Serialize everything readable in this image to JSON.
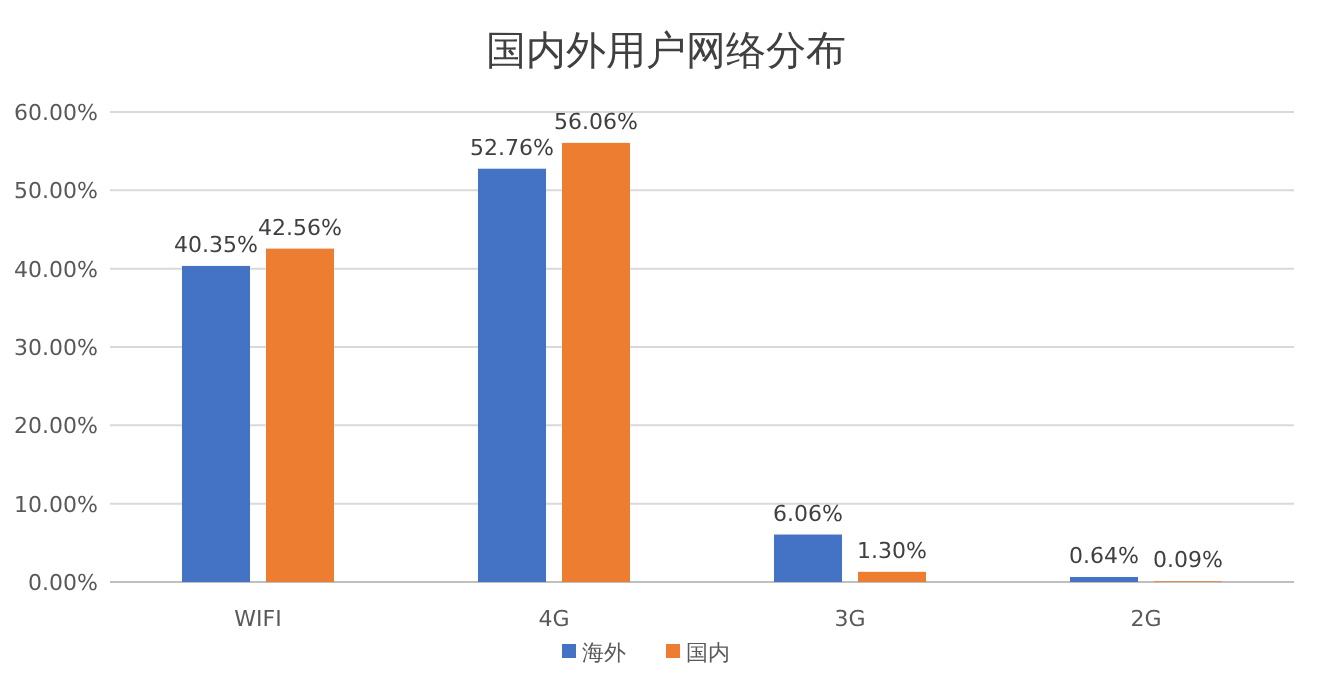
{
  "chart_data": {
    "type": "bar",
    "title": "国内外用户网络分布",
    "categories": [
      "WIFI",
      "4G",
      "3G",
      "2G"
    ],
    "series": [
      {
        "name": "海外",
        "color": "#4472c4",
        "values": [
          40.35,
          52.76,
          6.06,
          0.64
        ],
        "value_labels": [
          "40.35%",
          "52.76%",
          "6.06%",
          "0.64%"
        ]
      },
      {
        "name": "国内",
        "color": "#ed7d31",
        "values": [
          42.56,
          56.06,
          1.3,
          0.09
        ],
        "value_labels": [
          "42.56%",
          "56.06%",
          "1.30%",
          "0.09%"
        ]
      }
    ],
    "ylim": [
      0,
      60
    ],
    "yticks": [
      {
        "value": 0,
        "label": "0.00%"
      },
      {
        "value": 10,
        "label": "10.00%"
      },
      {
        "value": 20,
        "label": "20.00%"
      },
      {
        "value": 30,
        "label": "30.00%"
      },
      {
        "value": 40,
        "label": "40.00%"
      },
      {
        "value": 50,
        "label": "50.00%"
      },
      {
        "value": 60,
        "label": "60.00%"
      }
    ],
    "grid": "y",
    "legend": "bottom"
  }
}
